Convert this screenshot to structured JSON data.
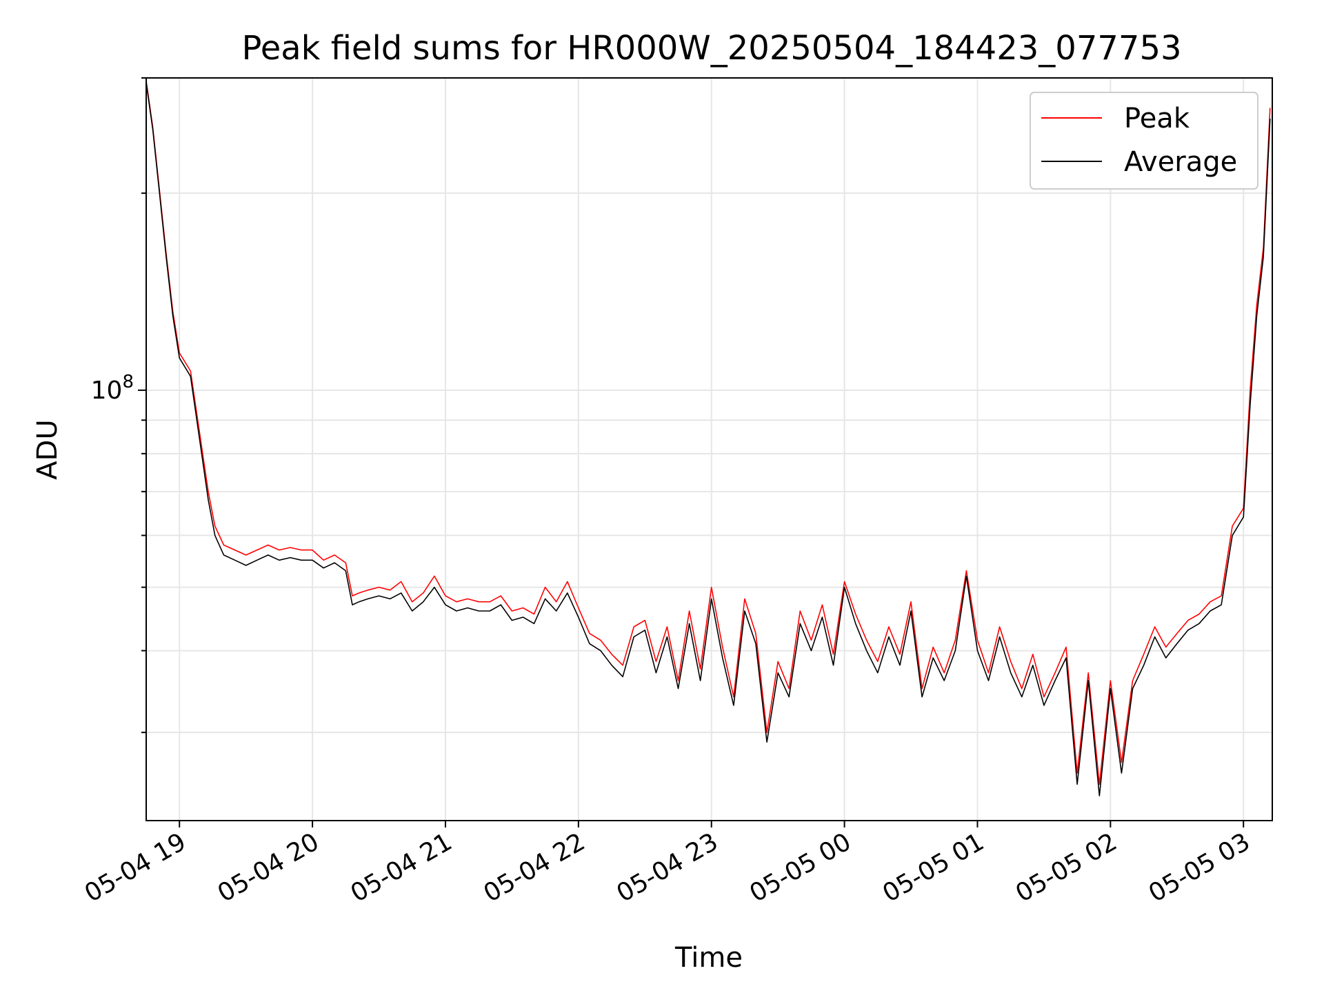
{
  "chart_data": {
    "type": "line",
    "title": "Peak field sums for HR000W_20250504_184423_077753",
    "xlabel": "Time",
    "ylabel": "ADU",
    "y_scale": "log",
    "grid": true,
    "legend_position": "top-right",
    "x_tick_labels": [
      "05-04 19",
      "05-04 20",
      "05-04 21",
      "05-04 22",
      "05-04 23",
      "05-05 00",
      "05-05 01",
      "05-05 02",
      "05-05 03"
    ],
    "y_tick_label": "10^8",
    "x_range": [
      "2025-05-04 18:45",
      "2025-05-05 03:13"
    ],
    "ylim": [
      22000000.0,
      300000000.0
    ],
    "series": [
      {
        "name": "Peak",
        "color": "#ff0000"
      },
      {
        "name": "Average",
        "color": "#000000"
      }
    ],
    "x": [
      "2025-05-04 18:45",
      "2025-05-04 18:48",
      "2025-05-04 18:51",
      "2025-05-04 18:54",
      "2025-05-04 18:57",
      "2025-05-04 19:00",
      "2025-05-04 19:05",
      "2025-05-04 19:10",
      "2025-05-04 19:13",
      "2025-05-04 19:16",
      "2025-05-04 19:20",
      "2025-05-04 19:25",
      "2025-05-04 19:30",
      "2025-05-04 19:35",
      "2025-05-04 19:40",
      "2025-05-04 19:45",
      "2025-05-04 19:50",
      "2025-05-04 19:55",
      "2025-05-04 20:00",
      "2025-05-04 20:05",
      "2025-05-04 20:10",
      "2025-05-04 20:15",
      "2025-05-04 20:18",
      "2025-05-04 20:21",
      "2025-05-04 20:25",
      "2025-05-04 20:30",
      "2025-05-04 20:35",
      "2025-05-04 20:40",
      "2025-05-04 20:45",
      "2025-05-04 20:50",
      "2025-05-04 20:55",
      "2025-05-04 21:00",
      "2025-05-04 21:05",
      "2025-05-04 21:10",
      "2025-05-04 21:15",
      "2025-05-04 21:20",
      "2025-05-04 21:25",
      "2025-05-04 21:30",
      "2025-05-04 21:35",
      "2025-05-04 21:40",
      "2025-05-04 21:45",
      "2025-05-04 21:50",
      "2025-05-04 21:55",
      "2025-05-04 22:00",
      "2025-05-04 22:05",
      "2025-05-04 22:10",
      "2025-05-04 22:15",
      "2025-05-04 22:20",
      "2025-05-04 22:25",
      "2025-05-04 22:30",
      "2025-05-04 22:35",
      "2025-05-04 22:40",
      "2025-05-04 22:45",
      "2025-05-04 22:50",
      "2025-05-04 22:55",
      "2025-05-04 23:00",
      "2025-05-04 23:05",
      "2025-05-04 23:10",
      "2025-05-04 23:15",
      "2025-05-04 23:20",
      "2025-05-04 23:25",
      "2025-05-04 23:30",
      "2025-05-04 23:35",
      "2025-05-04 23:40",
      "2025-05-04 23:45",
      "2025-05-04 23:50",
      "2025-05-04 23:55",
      "2025-05-05 00:00",
      "2025-05-05 00:05",
      "2025-05-05 00:10",
      "2025-05-05 00:15",
      "2025-05-05 00:20",
      "2025-05-05 00:25",
      "2025-05-05 00:30",
      "2025-05-05 00:35",
      "2025-05-05 00:40",
      "2025-05-05 00:45",
      "2025-05-05 00:50",
      "2025-05-05 00:55",
      "2025-05-05 01:00",
      "2025-05-05 01:05",
      "2025-05-05 01:10",
      "2025-05-05 01:15",
      "2025-05-05 01:20",
      "2025-05-05 01:25",
      "2025-05-05 01:30",
      "2025-05-05 01:35",
      "2025-05-05 01:40",
      "2025-05-05 01:45",
      "2025-05-05 01:50",
      "2025-05-05 01:55",
      "2025-05-05 02:00",
      "2025-05-05 02:05",
      "2025-05-05 02:10",
      "2025-05-05 02:15",
      "2025-05-05 02:20",
      "2025-05-05 02:25",
      "2025-05-05 02:30",
      "2025-05-05 02:35",
      "2025-05-05 02:40",
      "2025-05-05 02:45",
      "2025-05-05 02:50",
      "2025-05-05 02:55",
      "2025-05-05 03:00",
      "2025-05-05 03:03",
      "2025-05-05 03:06",
      "2025-05-05 03:09",
      "2025-05-05 03:12"
    ],
    "average": [
      295000000.0,
      250000000.0,
      200000000.0,
      160000000.0,
      130000000.0,
      112000000.0,
      105000000.0,
      80000000.0,
      68000000.0,
      60000000.0,
      56000000.0,
      55000000.0,
      54000000.0,
      55000000.0,
      56000000.0,
      55000000.0,
      55500000.0,
      55000000.0,
      55000000.0,
      53500000.0,
      54500000.0,
      53000000.0,
      47000000.0,
      47500000.0,
      48000000.0,
      48500000.0,
      48000000.0,
      49000000.0,
      46000000.0,
      47500000.0,
      50000000.0,
      47000000.0,
      46000000.0,
      46500000.0,
      46000000.0,
      46000000.0,
      47000000.0,
      44500000.0,
      45000000.0,
      44000000.0,
      48000000.0,
      46000000.0,
      49000000.0,
      45000000.0,
      41000000.0,
      40000000.0,
      38000000.0,
      36500000.0,
      42000000.0,
      43000000.0,
      37000000.0,
      42000000.0,
      35000000.0,
      44000000.0,
      36000000.0,
      48000000.0,
      39000000.0,
      33000000.0,
      46000000.0,
      41000000.0,
      29000000.0,
      37000000.0,
      34000000.0,
      44000000.0,
      40000000.0,
      45000000.0,
      38000000.0,
      50000000.0,
      44000000.0,
      40000000.0,
      37000000.0,
      42000000.0,
      38000000.0,
      46000000.0,
      34000000.0,
      39000000.0,
      36000000.0,
      40000000.0,
      52000000.0,
      40000000.0,
      36000000.0,
      42000000.0,
      37000000.0,
      34000000.0,
      38000000.0,
      33000000.0,
      36000000.0,
      39000000.0,
      25000000.0,
      36000000.0,
      24000000.0,
      35000000.0,
      26000000.0,
      35000000.0,
      38000000.0,
      42000000.0,
      39000000.0,
      41000000.0,
      43000000.0,
      44000000.0,
      46000000.0,
      47000000.0,
      60000000.0,
      64000000.0,
      95000000.0,
      130000000.0,
      160000000.0,
      260000000.0
    ],
    "peak": [
      297000000.0,
      252000000.0,
      202000000.0,
      162000000.0,
      132000000.0,
      114000000.0,
      107000000.0,
      82000000.0,
      70000000.0,
      62000000.0,
      58000000.0,
      57000000.0,
      56000000.0,
      57000000.0,
      58000000.0,
      57000000.0,
      57500000.0,
      57000000.0,
      57000000.0,
      55000000.0,
      56000000.0,
      54500000.0,
      48500000.0,
      49000000.0,
      49500000.0,
      50000000.0,
      49500000.0,
      51000000.0,
      47500000.0,
      49000000.0,
      52000000.0,
      48500000.0,
      47500000.0,
      48000000.0,
      47500000.0,
      47500000.0,
      48500000.0,
      46000000.0,
      46500000.0,
      45500000.0,
      50000000.0,
      47500000.0,
      51000000.0,
      46500000.0,
      42500000.0,
      41500000.0,
      39500000.0,
      38000000.0,
      43500000.0,
      44500000.0,
      38500000.0,
      43500000.0,
      36000000.0,
      46000000.0,
      37500000.0,
      50000000.0,
      40500000.0,
      34000000.0,
      48000000.0,
      42500000.0,
      30000000.0,
      38500000.0,
      35000000.0,
      46000000.0,
      41500000.0,
      47000000.0,
      39500000.0,
      51000000.0,
      45500000.0,
      41500000.0,
      38500000.0,
      43500000.0,
      39500000.0,
      47500000.0,
      35000000.0,
      40500000.0,
      37000000.0,
      41500000.0,
      53000000.0,
      41500000.0,
      37000000.0,
      43500000.0,
      38500000.0,
      35000000.0,
      39500000.0,
      34000000.0,
      37000000.0,
      40500000.0,
      26000000.0,
      37000000.0,
      25000000.0,
      36000000.0,
      27000000.0,
      36000000.0,
      39500000.0,
      43500000.0,
      40500000.0,
      42500000.0,
      44500000.0,
      45500000.0,
      47500000.0,
      48500000.0,
      62000000.0,
      66000000.0,
      100000000.0,
      135000000.0,
      165000000.0,
      270000000.0
    ]
  }
}
